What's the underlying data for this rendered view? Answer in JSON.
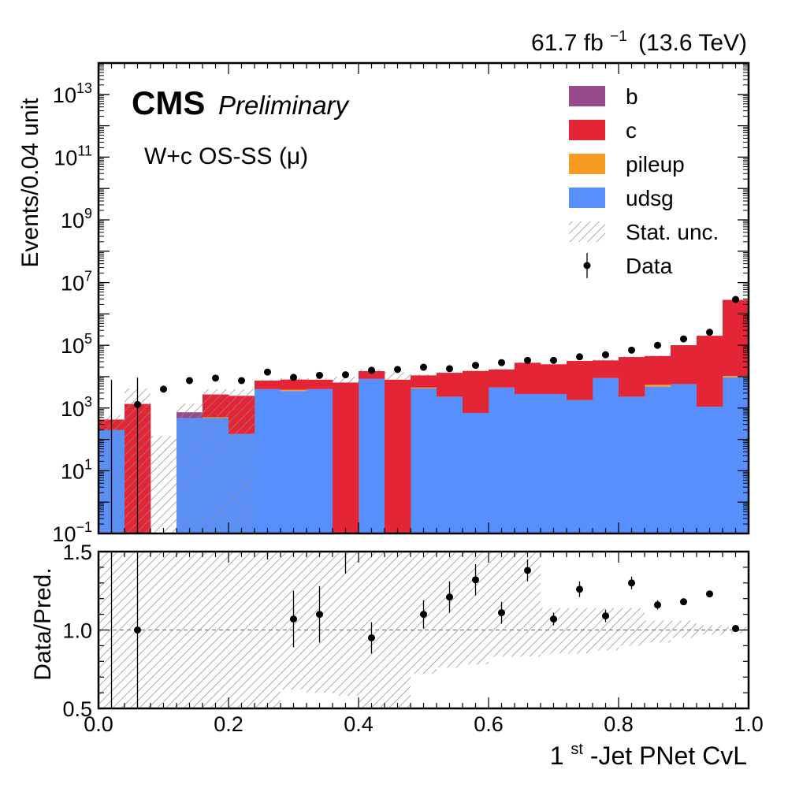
{
  "header": {
    "lumi": "61.7",
    "lumi_unit_base": "fb",
    "lumi_unit_exp": "−1",
    "energy": "(13.6 TeV)"
  },
  "labels": {
    "experiment": "CMS",
    "status": "Preliminary",
    "region": "W+c OS-SS (μ)"
  },
  "colors": {
    "b": "#964a8b",
    "c": "#e42536",
    "pileup": "#f89c20",
    "udsg": "#5790fc",
    "hatch": "#8a8a8a",
    "data": "#000000"
  },
  "chart_data": [
    {
      "type": "bar",
      "stacked": true,
      "log_y": true,
      "title": "",
      "xlabel": "",
      "ylabel": "Events/0.04 unit",
      "xlim": [
        0.0,
        1.0
      ],
      "ylim": [
        0.1,
        100000000000000.0
      ],
      "y_tick_labels": [
        {
          "base": "10",
          "exp": "−1",
          "value": 0.1
        },
        {
          "base": "10",
          "exp": "1",
          "value": 10
        },
        {
          "base": "10",
          "exp": "3",
          "value": 1000
        },
        {
          "base": "10",
          "exp": "5",
          "value": 100000
        },
        {
          "base": "10",
          "exp": "7",
          "value": 10000000
        },
        {
          "base": "10",
          "exp": "9",
          "value": 1000000000
        },
        {
          "base": "10",
          "exp": "11",
          "value": 100000000000
        },
        {
          "base": "10",
          "exp": "13",
          "value": 10000000000000
        }
      ],
      "bin_edges": [
        0.0,
        0.04,
        0.08,
        0.12,
        0.16,
        0.2,
        0.24,
        0.28,
        0.32,
        0.36,
        0.4,
        0.44,
        0.48,
        0.52,
        0.56,
        0.6,
        0.64,
        0.68,
        0.72,
        0.76,
        0.8,
        0.84,
        0.88,
        0.92,
        0.96,
        1.0
      ],
      "series": [
        {
          "name": "udsg",
          "color": "#5790fc",
          "values": [
            200,
            0,
            0,
            480,
            480,
            150,
            4000,
            3500,
            4000,
            0,
            8500,
            0,
            4200,
            2300,
            700,
            4500,
            2800,
            2800,
            1800,
            9000,
            2300,
            4800,
            5800,
            1100,
            9500
          ]
        },
        {
          "name": "pileup",
          "color": "#f89c20",
          "values": [
            0,
            0,
            0,
            0,
            30,
            0,
            0,
            300,
            0,
            0,
            0,
            0,
            300,
            0,
            0,
            0,
            0,
            0,
            0,
            0,
            0,
            700,
            0,
            0,
            1000
          ]
        },
        {
          "name": "c",
          "color": "#e42536",
          "values": [
            230,
            1350,
            0,
            0,
            2200,
            2300,
            3500,
            4300,
            4000,
            6500,
            6500,
            8000,
            6500,
            11000,
            14500,
            12500,
            25000,
            22000,
            30000,
            24000,
            40000,
            40000,
            95000,
            200000,
            2800000
          ]
        },
        {
          "name": "b",
          "color": "#964a8b",
          "values": [
            0,
            0,
            0,
            250,
            0,
            0,
            0,
            0,
            0,
            0,
            0,
            0,
            0,
            0,
            0,
            0,
            0,
            0,
            0,
            0,
            0,
            0,
            0,
            0,
            0
          ]
        }
      ],
      "stat_unc": {
        "name": "Stat. unc.",
        "upper": [
          600,
          4200,
          130,
          1400,
          4000,
          4000,
          8000,
          9000,
          9000,
          10000,
          17000,
          14000,
          12000,
          14000,
          16000,
          18000,
          29000,
          26000,
          32000,
          35000,
          44000,
          47000,
          102000,
          210000,
          2850000
        ],
        "lower": [
          0.1,
          0.1,
          0.1,
          0.1,
          0.1,
          0.1,
          7400,
          8000,
          8000,
          6500,
          15000,
          8000,
          11000,
          13000,
          15000,
          17000,
          27500,
          25000,
          31500,
          33000,
          42500,
          45500,
          100000,
          200000,
          2800000
        ]
      },
      "data": {
        "name": "Data",
        "x": [
          0.06,
          0.1,
          0.14,
          0.18,
          0.22,
          0.26,
          0.3,
          0.34,
          0.38,
          0.42,
          0.46,
          0.5,
          0.54,
          0.58,
          0.62,
          0.66,
          0.7,
          0.74,
          0.78,
          0.82,
          0.86,
          0.9,
          0.94,
          0.98
        ],
        "y": [
          1300,
          4000,
          7500,
          9000,
          7500,
          14000,
          9500,
          11000,
          11500,
          16000,
          17000,
          20000,
          18000,
          23000,
          28000,
          33000,
          33000,
          43000,
          50000,
          70000,
          100000,
          160000,
          260000,
          2900000
        ],
        "err_low": [
          1299.9,
          0,
          0,
          0,
          0,
          0,
          0,
          0,
          0,
          0,
          0,
          0,
          0,
          0,
          0,
          0,
          0,
          0,
          0,
          0,
          0,
          0,
          0,
          0
        ],
        "err_high": [
          8000,
          0,
          0,
          0,
          0,
          0,
          0,
          0,
          0,
          0,
          0,
          0,
          0,
          0,
          0,
          0,
          0,
          0,
          0,
          0,
          0,
          0,
          0,
          0
        ]
      },
      "extra_data_bar": {
        "x": 0.02,
        "low": 0.1,
        "high": 8000
      },
      "legend": {
        "placement": "top-right",
        "entries": [
          {
            "label": "b",
            "kind": "box",
            "color": "#964a8b"
          },
          {
            "label": "c",
            "kind": "box",
            "color": "#e42536"
          },
          {
            "label": "pileup",
            "kind": "box",
            "color": "#f89c20"
          },
          {
            "label": "udsg",
            "kind": "box",
            "color": "#5790fc"
          },
          {
            "label": "Stat. unc.",
            "kind": "hatch"
          },
          {
            "label": "Data",
            "kind": "marker"
          }
        ]
      }
    },
    {
      "type": "scatter",
      "title": "",
      "xlabel_base": "1",
      "xlabel_sup": "st",
      "xlabel_rest": "-Jet PNet CvL",
      "ylabel": "Data/Pred.",
      "xlim": [
        0.0,
        1.0
      ],
      "ylim": [
        0.5,
        1.5
      ],
      "x_tick_labels": [
        "0.0",
        "0.2",
        "0.4",
        "0.6",
        "0.8",
        "1.0"
      ],
      "x_tick_values": [
        0.0,
        0.2,
        0.4,
        0.6,
        0.8,
        1.0
      ],
      "y_tick_labels": [
        "0.5",
        "1.0",
        "1.5"
      ],
      "y_tick_values": [
        0.5,
        1.0,
        1.5
      ],
      "reference_line": 1.0,
      "unc_band": {
        "upper": [
          1.5,
          1.5,
          1.5,
          1.5,
          1.5,
          1.5,
          1.5,
          1.5,
          1.5,
          1.5,
          1.5,
          1.5,
          1.5,
          1.5,
          1.5,
          1.5,
          1.5,
          1.14,
          1.14,
          1.14,
          1.14,
          1.06,
          1.06,
          1.03,
          1.02
        ],
        "lower": [
          0.5,
          0.5,
          0.5,
          0.5,
          0.5,
          0.5,
          0.5,
          0.62,
          0.6,
          0.58,
          0.5,
          0.5,
          0.72,
          0.76,
          0.78,
          0.83,
          0.83,
          0.85,
          0.85,
          0.87,
          0.9,
          0.92,
          0.95,
          0.97,
          0.98
        ]
      },
      "points": {
        "x": [
          0.06,
          0.3,
          0.34,
          0.42,
          0.5,
          0.54,
          0.58,
          0.62,
          0.66,
          0.7,
          0.74,
          0.78,
          0.82,
          0.86,
          0.9,
          0.94,
          0.98
        ],
        "y": [
          1.0,
          1.07,
          1.1,
          0.95,
          1.1,
          1.21,
          1.32,
          1.11,
          1.38,
          1.07,
          1.26,
          1.09,
          1.3,
          1.16,
          1.18,
          1.23,
          1.01
        ],
        "err": [
          1.0,
          0.18,
          0.18,
          0.1,
          0.09,
          0.1,
          0.1,
          0.07,
          0.07,
          0.04,
          0.05,
          0.04,
          0.04,
          0.03,
          0.02,
          0.02,
          0.01
        ]
      },
      "out_of_range_bars": [
        {
          "x": 0.02,
          "low": 0.5,
          "high": 1.5
        },
        {
          "x": 0.26,
          "low": 1.45,
          "high": 1.5
        },
        {
          "x": 0.38,
          "low": 1.36,
          "high": 1.5
        }
      ]
    }
  ]
}
